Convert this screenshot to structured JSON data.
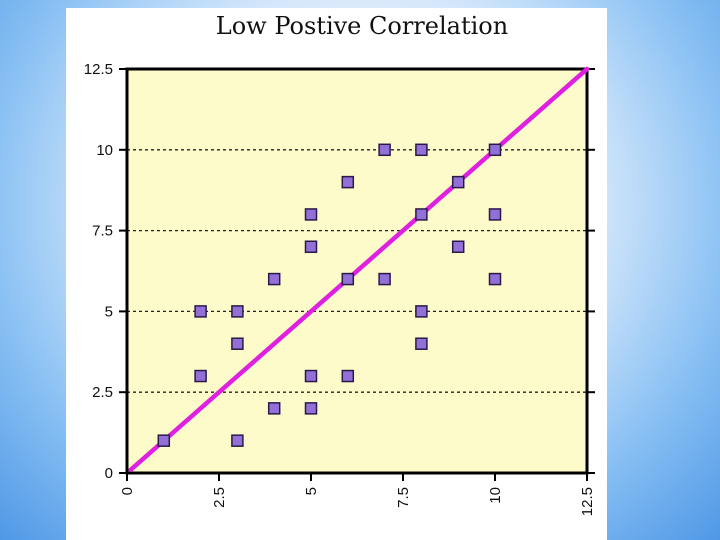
{
  "chart_data": {
    "type": "scatter",
    "title": "Low Postive Correlation",
    "xlabel": "",
    "ylabel": "",
    "xlim": [
      0,
      12.5
    ],
    "ylim": [
      0,
      12.5
    ],
    "x_ticks": [
      "0",
      "2.5",
      "5",
      "7.5",
      "10",
      "12.5"
    ],
    "y_ticks": [
      "0",
      "2.5",
      "5",
      "7.5",
      "10",
      "12.5"
    ],
    "grid": "horizontal dashed",
    "points": [
      {
        "x": 1,
        "y": 1
      },
      {
        "x": 2,
        "y": 3
      },
      {
        "x": 2,
        "y": 5
      },
      {
        "x": 3,
        "y": 1
      },
      {
        "x": 3,
        "y": 4
      },
      {
        "x": 3,
        "y": 5
      },
      {
        "x": 4,
        "y": 2
      },
      {
        "x": 4,
        "y": 6
      },
      {
        "x": 5,
        "y": 2
      },
      {
        "x": 5,
        "y": 3
      },
      {
        "x": 5,
        "y": 7
      },
      {
        "x": 5,
        "y": 8
      },
      {
        "x": 6,
        "y": 3
      },
      {
        "x": 6,
        "y": 6
      },
      {
        "x": 6,
        "y": 9
      },
      {
        "x": 7,
        "y": 6
      },
      {
        "x": 7,
        "y": 10
      },
      {
        "x": 8,
        "y": 4
      },
      {
        "x": 8,
        "y": 5
      },
      {
        "x": 8,
        "y": 8
      },
      {
        "x": 8,
        "y": 10
      },
      {
        "x": 9,
        "y": 7
      },
      {
        "x": 9,
        "y": 9
      },
      {
        "x": 10,
        "y": 6
      },
      {
        "x": 10,
        "y": 8
      },
      {
        "x": 10,
        "y": 10
      }
    ],
    "trend_line": {
      "x": [
        0.1,
        12.5
      ],
      "y": [
        0.1,
        12.5
      ]
    },
    "colors": {
      "plot_background": "#fdfbc9",
      "marker_fill": "#9370d8",
      "marker_stroke": "#2a1a4a",
      "trend_line": "#e020e0",
      "grid": "#222222"
    }
  }
}
